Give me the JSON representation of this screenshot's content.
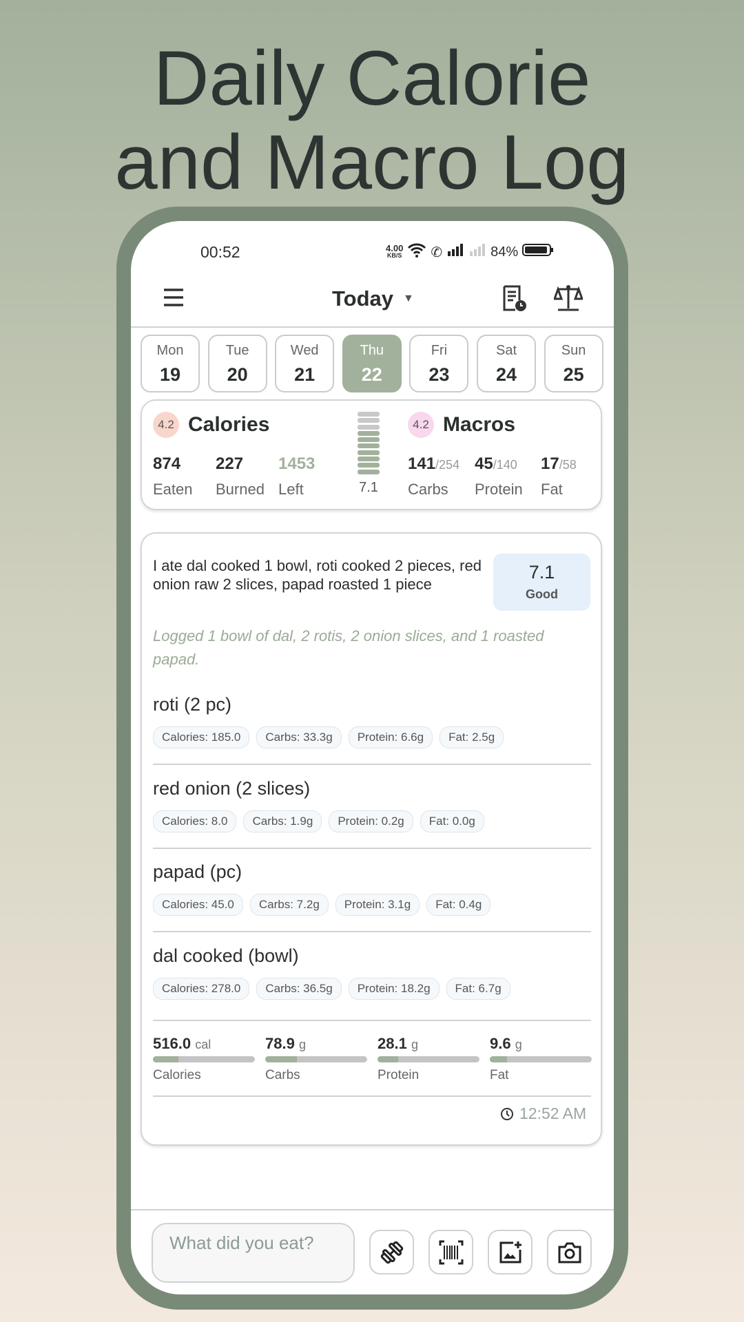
{
  "title_lines": [
    "Daily Calorie",
    "and Macro Log"
  ],
  "status": {
    "time": "00:52",
    "speed": "4.00",
    "speed_unit": "KB/S",
    "battery": "84%"
  },
  "header": {
    "title": "Today"
  },
  "days": [
    {
      "name": "Mon",
      "date": "19"
    },
    {
      "name": "Tue",
      "date": "20"
    },
    {
      "name": "Wed",
      "date": "21"
    },
    {
      "name": "Thu",
      "date": "22",
      "selected": true
    },
    {
      "name": "Fri",
      "date": "23"
    },
    {
      "name": "Sat",
      "date": "24"
    },
    {
      "name": "Sun",
      "date": "25"
    }
  ],
  "summary": {
    "calories": {
      "badge": "4.2",
      "title": "Calories",
      "eaten": "874",
      "eaten_label": "Eaten",
      "burned": "227",
      "burned_label": "Burned",
      "left": "1453",
      "left_label": "Left"
    },
    "score": {
      "value": "7.1",
      "level": 0.71
    },
    "macros": {
      "badge": "4.2",
      "title": "Macros",
      "carbs": "141",
      "carbs_goal": "/254",
      "carbs_label": "Carbs",
      "protein": "45",
      "protein_goal": "/140",
      "protein_label": "Protein",
      "fat": "17",
      "fat_goal": "/58",
      "fat_label": "Fat"
    }
  },
  "meal": {
    "description": "I ate dal cooked 1 bowl, roti cooked 2 pieces, red onion raw 2 slices, papad roasted 1 piece",
    "score": "7.1",
    "score_label": "Good",
    "note": "Logged 1 bowl of dal, 2 rotis, 2 onion slices, and 1 roasted papad.",
    "items": [
      {
        "name": "roti (2 pc)",
        "chips": [
          "Calories: 185.0",
          "Carbs: 33.3g",
          "Protein: 6.6g",
          "Fat: 2.5g"
        ]
      },
      {
        "name": "red onion (2 slices)",
        "chips": [
          "Calories: 8.0",
          "Carbs: 1.9g",
          "Protein: 0.2g",
          "Fat: 0.0g"
        ]
      },
      {
        "name": "papad (pc)",
        "chips": [
          "Calories: 45.0",
          "Carbs: 7.2g",
          "Protein: 3.1g",
          "Fat: 0.4g"
        ]
      },
      {
        "name": "dal cooked (bowl)",
        "chips": [
          "Calories: 278.0",
          "Carbs: 36.5g",
          "Protein: 18.2g",
          "Fat: 6.7g"
        ]
      }
    ],
    "totals": [
      {
        "value": "516.0",
        "unit": "cal",
        "label": "Calories",
        "fill": 0.25
      },
      {
        "value": "78.9",
        "unit": "g",
        "label": "Carbs",
        "fill": 0.31
      },
      {
        "value": "28.1",
        "unit": "g",
        "label": "Protein",
        "fill": 0.2
      },
      {
        "value": "9.6",
        "unit": "g",
        "label": "Fat",
        "fill": 0.17
      }
    ],
    "time": "12:52 AM"
  },
  "input": {
    "placeholder": "What did you eat?"
  },
  "colors": {
    "accent": "#a2b19c",
    "frame": "#7a8a78",
    "calories_badge": "#f9d6cc",
    "macros_badge": "#f9d7ec",
    "score_box": "#e6f0fa"
  }
}
